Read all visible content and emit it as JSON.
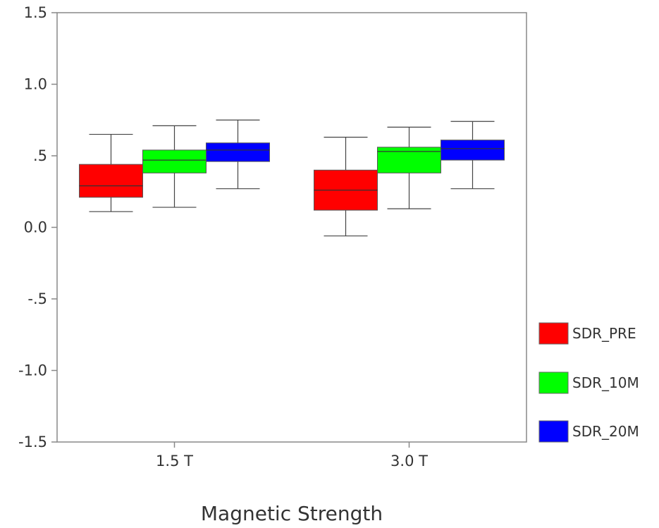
{
  "chart_data": {
    "type": "boxplot",
    "title": "",
    "xlabel": "Magnetic Strength",
    "ylabel": "",
    "ylim": [
      -1.5,
      1.5
    ],
    "yticks": [
      1.5,
      1.0,
      0.5,
      0.0,
      -0.5,
      -1.0,
      -1.5
    ],
    "ytick_labels": [
      "1.5",
      "1.0",
      ".5",
      "0.0",
      "-.5",
      "-1.0",
      "-1.5"
    ],
    "categories": [
      "1.5 T",
      "3.0 T"
    ],
    "grid": false,
    "legend_position": "right",
    "series": [
      {
        "name": "SDR_PRE",
        "color": "#ff0000",
        "boxes": [
          {
            "min": 0.11,
            "q1": 0.21,
            "median": 0.29,
            "q3": 0.44,
            "max": 0.65
          },
          {
            "min": -0.06,
            "q1": 0.12,
            "median": 0.26,
            "q3": 0.4,
            "max": 0.63
          }
        ]
      },
      {
        "name": "SDR_10M",
        "color": "#00ff00",
        "boxes": [
          {
            "min": 0.14,
            "q1": 0.38,
            "median": 0.47,
            "q3": 0.54,
            "max": 0.71
          },
          {
            "min": 0.13,
            "q1": 0.38,
            "median": 0.53,
            "q3": 0.56,
            "max": 0.7
          }
        ]
      },
      {
        "name": "SDR_20M",
        "color": "#0000ff",
        "boxes": [
          {
            "min": 0.27,
            "q1": 0.46,
            "median": 0.54,
            "q3": 0.59,
            "max": 0.75
          },
          {
            "min": 0.27,
            "q1": 0.47,
            "median": 0.55,
            "q3": 0.61,
            "max": 0.74
          }
        ]
      }
    ]
  }
}
